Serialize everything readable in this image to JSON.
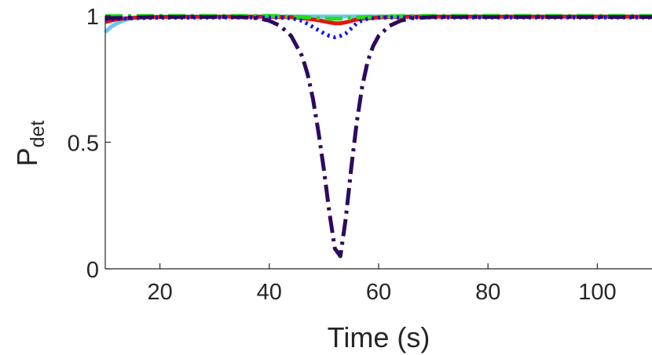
{
  "chart_data": {
    "type": "line",
    "xlabel": "Time (s)",
    "ylabel_main": "P",
    "ylabel_sub": "det",
    "xlim": [
      10,
      110
    ],
    "ylim": [
      0,
      1
    ],
    "xticks": [
      20,
      40,
      60,
      80,
      100
    ],
    "yticks": [
      0,
      0.5,
      1
    ],
    "ytick_labels": [
      "0",
      "0.5",
      "1"
    ],
    "grid": false,
    "series": [
      {
        "color": "#6ec6ea",
        "style": "solid",
        "x": [
          10,
          11,
          12,
          13,
          14,
          15,
          16,
          18,
          20,
          25,
          30,
          40,
          50,
          60,
          70,
          80,
          90,
          100,
          110
        ],
        "y": [
          0.935,
          0.955,
          0.968,
          0.978,
          0.985,
          0.99,
          0.993,
          0.995,
          0.996,
          0.997,
          0.997,
          0.997,
          0.997,
          0.997,
          0.997,
          0.997,
          0.997,
          0.997,
          0.997
        ]
      },
      {
        "color": "#e8120c",
        "style": "solid",
        "x": [
          10,
          12,
          14,
          16,
          20,
          30,
          40,
          44,
          46,
          48,
          50,
          51,
          52,
          53,
          54,
          56,
          58,
          60,
          62,
          66,
          70,
          80,
          90,
          100,
          110
        ],
        "y": [
          0.975,
          0.985,
          0.99,
          0.993,
          0.995,
          0.996,
          0.996,
          0.994,
          0.99,
          0.985,
          0.978,
          0.973,
          0.97,
          0.97,
          0.974,
          0.985,
          0.99,
          0.993,
          0.995,
          0.996,
          0.996,
          0.996,
          0.996,
          0.996,
          0.996
        ]
      },
      {
        "color": "#22dd22",
        "style": "dashdot",
        "x": [
          10,
          20,
          30,
          40,
          45,
          48,
          50,
          52,
          54,
          56,
          60,
          70,
          80,
          90,
          100,
          110
        ],
        "y": [
          0.998,
          0.999,
          0.999,
          0.999,
          0.996,
          0.992,
          0.989,
          0.988,
          0.989,
          0.993,
          0.997,
          0.999,
          0.999,
          0.999,
          0.999,
          0.999
        ]
      },
      {
        "color": "#0a14e8",
        "style": "dotted",
        "x": [
          10,
          15,
          20,
          30,
          40,
          44,
          46,
          48,
          50,
          51,
          52,
          53,
          54,
          55,
          56,
          57,
          58,
          60,
          62,
          66,
          70,
          80,
          90,
          100,
          110
        ],
        "y": [
          0.985,
          0.99,
          0.992,
          0.993,
          0.993,
          0.99,
          0.98,
          0.955,
          0.93,
          0.92,
          0.915,
          0.92,
          0.93,
          0.95,
          0.97,
          0.982,
          0.988,
          0.992,
          0.993,
          0.993,
          0.993,
          0.993,
          0.993,
          0.993,
          0.993
        ]
      },
      {
        "color": "#2e0a5e",
        "style": "dashdot",
        "x": [
          10,
          20,
          30,
          35,
          38,
          40,
          42,
          44,
          46,
          47,
          48,
          49,
          50,
          51,
          52,
          53,
          54,
          55,
          56,
          57,
          58,
          59,
          60,
          62,
          64,
          66,
          70,
          80,
          90,
          100,
          110
        ],
        "y": [
          0.99,
          0.995,
          0.995,
          0.994,
          0.99,
          0.98,
          0.96,
          0.92,
          0.84,
          0.77,
          0.67,
          0.54,
          0.39,
          0.22,
          0.08,
          0.05,
          0.2,
          0.4,
          0.58,
          0.72,
          0.82,
          0.88,
          0.92,
          0.96,
          0.98,
          0.99,
          0.995,
          0.995,
          0.995,
          0.995,
          0.995
        ]
      }
    ]
  }
}
